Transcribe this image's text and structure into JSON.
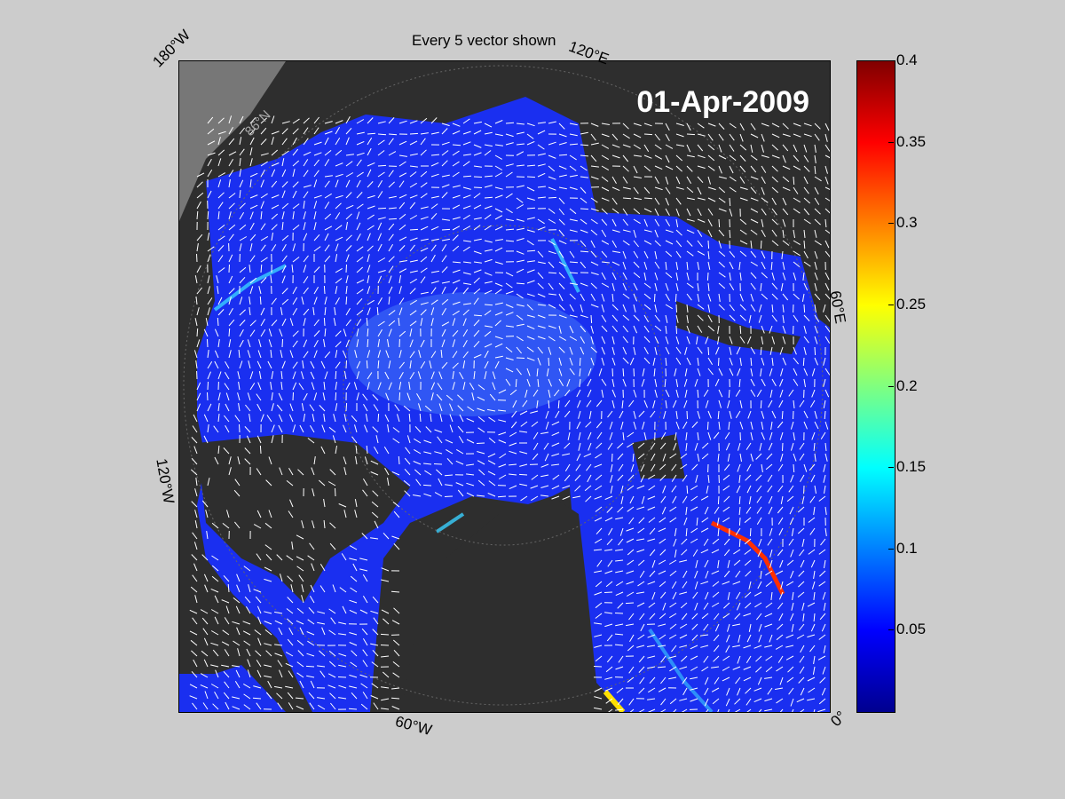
{
  "title": "Every 5 vector shown",
  "date_label": "01-Apr-2009",
  "longitude_labels": {
    "w180": "180°W",
    "e120": "120°E",
    "e60": "60°E",
    "w120": "120°W",
    "w60": "60°W",
    "zero": "0°",
    "lat86": "86°N"
  },
  "colorbar": {
    "min": 0,
    "max": 0.4,
    "colormap": "jet",
    "ticks": [
      "0.4",
      "0.35",
      "0.3",
      "0.25",
      "0.2",
      "0.15",
      "0.1",
      "0.05"
    ]
  },
  "colors": {
    "background": "#cccccc",
    "land": "#2e2e2e",
    "ice_base": "#1a2ff0",
    "vector": "#ffffff"
  }
}
